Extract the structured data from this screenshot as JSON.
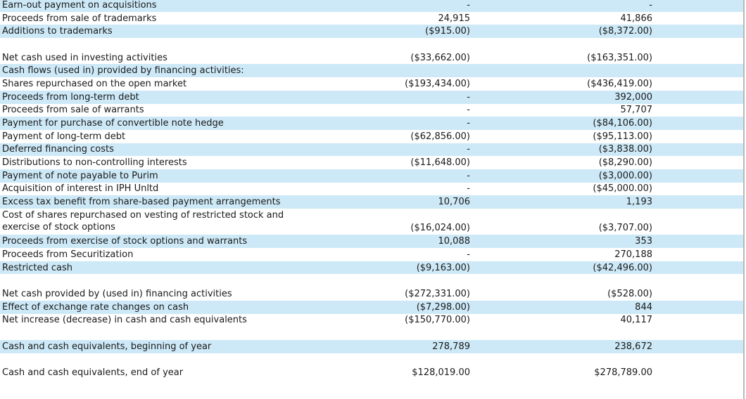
{
  "table": {
    "rows": [
      [
        "Earn-out payment on acquisitions",
        "-",
        "-"
      ],
      [
        "Proceeds from sale of trademarks",
        "24,915",
        "41,866"
      ],
      [
        "Additions to trademarks",
        "($915.00)",
        "($8,372.00)"
      ],
      [
        "Net cash used in investing activities",
        "($33,662.00)",
        "($163,351.00)"
      ],
      [
        "Cash flows (used in) provided by financing activities:"
      ],
      [
        "Shares repurchased on the open market",
        "($193,434.00)",
        "($436,419.00)"
      ],
      [
        "Proceeds from long-term debt",
        "-",
        "392,000"
      ],
      [
        "Proceeds from sale of warrants",
        "-",
        "57,707"
      ],
      [
        "Payment for purchase of convertible note hedge",
        "-",
        "($84,106.00)"
      ],
      [
        "Payment of long-term debt",
        "($62,856.00)",
        "($95,113.00)"
      ],
      [
        "Deferred financing costs",
        "-",
        "($3,838.00)"
      ],
      [
        "Distributions to non-controlling interests",
        "($11,648.00)",
        "($8,290.00)"
      ],
      [
        "Payment of note payable to Purim",
        "-",
        "($3,000.00)"
      ],
      [
        "Acquisition of interest in IPH Unltd",
        "-",
        "($45,000.00)"
      ],
      [
        "Excess tax benefit from share-based payment arrangements",
        "10,706",
        "1,193"
      ],
      [
        [
          "Cost of shares repurchased on vesting of restricted stock and",
          "exercise of stock options"
        ],
        "($16,024.00)",
        "($3,707.00)"
      ],
      [
        "Proceeds from exercise of stock options and warrants",
        "10,088",
        "353"
      ],
      [
        "Proceeds from Securitization",
        "-",
        "270,188"
      ],
      [
        "Restricted cash",
        "($9,163.00)",
        "($42,496.00)"
      ],
      [
        "Net cash provided by (used in) financing activities",
        "($272,331.00)",
        "($528.00)"
      ],
      [
        "Effect of exchange rate changes on cash",
        "($7,298.00)",
        "844"
      ],
      [
        "Net increase (decrease) in cash and cash equivalents",
        "($150,770.00)",
        "40,117"
      ],
      [
        "Cash and cash equivalents, beginning of year",
        "278,789",
        "238,672"
      ],
      [
        "Cash and cash equivalents, end of year",
        "$128,019.00",
        "$278,789.00"
      ]
    ]
  }
}
